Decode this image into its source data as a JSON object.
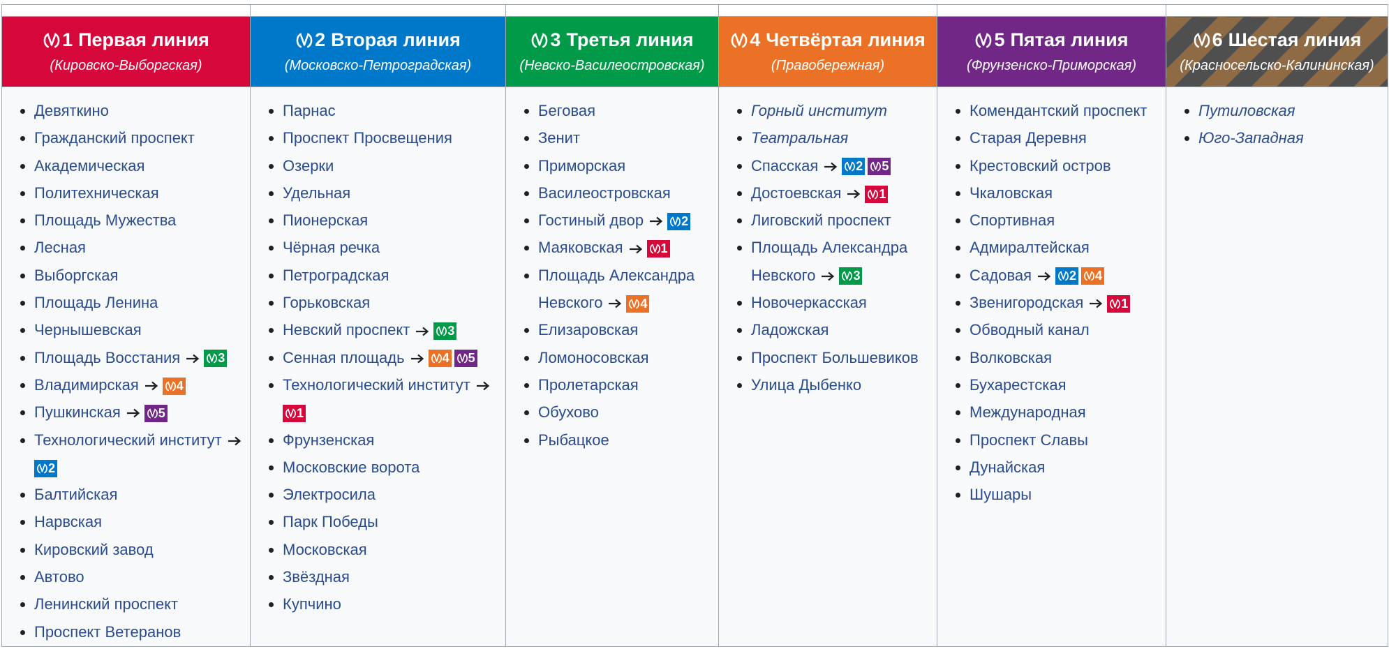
{
  "lines": [
    {
      "number": "1",
      "name": "Первая линия",
      "subtitle": "(Кировско-Выборгская)",
      "color": "#d6083b",
      "stations": [
        {
          "name": "Девяткино"
        },
        {
          "name": "Гражданский проспект"
        },
        {
          "name": "Академическая"
        },
        {
          "name": "Политехническая"
        },
        {
          "name": "Площадь Мужества"
        },
        {
          "name": "Лесная"
        },
        {
          "name": "Выборгская"
        },
        {
          "name": "Площадь Ленина"
        },
        {
          "name": "Чернышевская"
        },
        {
          "name": "Площадь Восстания",
          "transfers": [
            "3"
          ]
        },
        {
          "name": "Владимирская",
          "transfers": [
            "4"
          ]
        },
        {
          "name": "Пушкинская",
          "transfers": [
            "5"
          ]
        },
        {
          "name": "Технологический институт",
          "transfers": [
            "2"
          ]
        },
        {
          "name": "Балтийская"
        },
        {
          "name": "Нарвская"
        },
        {
          "name": "Кировский завод"
        },
        {
          "name": "Автово"
        },
        {
          "name": "Ленинский проспект"
        },
        {
          "name": "Проспект Ветеранов"
        }
      ]
    },
    {
      "number": "2",
      "name": "Вторая линия",
      "subtitle": "(Московско-Петроградская)",
      "color": "#0078c9",
      "stations": [
        {
          "name": "Парнас"
        },
        {
          "name": "Проспект Просвещения"
        },
        {
          "name": "Озерки"
        },
        {
          "name": "Удельная"
        },
        {
          "name": "Пионерская"
        },
        {
          "name": "Чёрная речка"
        },
        {
          "name": "Петроградская"
        },
        {
          "name": "Горьковская"
        },
        {
          "name": "Невский проспект",
          "transfers": [
            "3"
          ]
        },
        {
          "name": "Сенная площадь",
          "transfers": [
            "4",
            "5"
          ]
        },
        {
          "name": "Технологический институт",
          "transfers": [
            "1"
          ]
        },
        {
          "name": "Фрунзенская"
        },
        {
          "name": "Московские ворота"
        },
        {
          "name": "Электросила"
        },
        {
          "name": "Парк Победы"
        },
        {
          "name": "Московская"
        },
        {
          "name": "Звёздная"
        },
        {
          "name": "Купчино"
        }
      ]
    },
    {
      "number": "3",
      "name": "Третья линия",
      "subtitle": "(Невско-Василеостровская)",
      "color": "#009a49",
      "stations": [
        {
          "name": "Беговая"
        },
        {
          "name": "Зенит"
        },
        {
          "name": "Приморская"
        },
        {
          "name": "Василеостровская"
        },
        {
          "name": "Гостиный двор",
          "transfers": [
            "2"
          ]
        },
        {
          "name": "Маяковская",
          "transfers": [
            "1"
          ]
        },
        {
          "name": "Площадь Александра Невского",
          "transfers": [
            "4"
          ]
        },
        {
          "name": "Елизаровская"
        },
        {
          "name": "Ломоносовская"
        },
        {
          "name": "Пролетарская"
        },
        {
          "name": "Обухово"
        },
        {
          "name": "Рыбацкое"
        }
      ]
    },
    {
      "number": "4",
      "name": "Четвёртая линия",
      "subtitle": "(Правобережная)",
      "color": "#ea7125",
      "stations": [
        {
          "name": "Горный институт",
          "italic": true
        },
        {
          "name": "Театральная",
          "italic": true
        },
        {
          "name": "Спасская",
          "transfers": [
            "2",
            "5"
          ]
        },
        {
          "name": "Достоевская",
          "transfers": [
            "1"
          ]
        },
        {
          "name": "Лиговский проспект"
        },
        {
          "name": "Площадь Александра Невского",
          "transfers": [
            "3"
          ]
        },
        {
          "name": "Новочеркасская"
        },
        {
          "name": "Ладожская"
        },
        {
          "name": "Проспект Большевиков"
        },
        {
          "name": "Улица Дыбенко"
        }
      ]
    },
    {
      "number": "5",
      "name": "Пятая линия",
      "subtitle": "(Фрунзенско-Приморская)",
      "color": "#702785",
      "stations": [
        {
          "name": "Комендантский проспект"
        },
        {
          "name": "Старая Деревня"
        },
        {
          "name": "Крестовский остров"
        },
        {
          "name": "Чкаловская"
        },
        {
          "name": "Спортивная"
        },
        {
          "name": "Адмиралтейская"
        },
        {
          "name": "Садовая",
          "transfers": [
            "2",
            "4"
          ]
        },
        {
          "name": "Звенигородская",
          "transfers": [
            "1"
          ]
        },
        {
          "name": "Обводный канал"
        },
        {
          "name": "Волковская"
        },
        {
          "name": "Бухарестская"
        },
        {
          "name": "Международная"
        },
        {
          "name": "Проспект Славы"
        },
        {
          "name": "Дунайская"
        },
        {
          "name": "Шушары"
        }
      ]
    },
    {
      "number": "6",
      "name": "Шестая линия",
      "subtitle": "(Красносельско-Калининская)",
      "color": "#4f4f4f",
      "striped": true,
      "stripe_color": "#8e6a45",
      "stations": [
        {
          "name": "Путиловская",
          "italic": true
        },
        {
          "name": "Юго-Западная",
          "italic": true
        }
      ]
    }
  ]
}
